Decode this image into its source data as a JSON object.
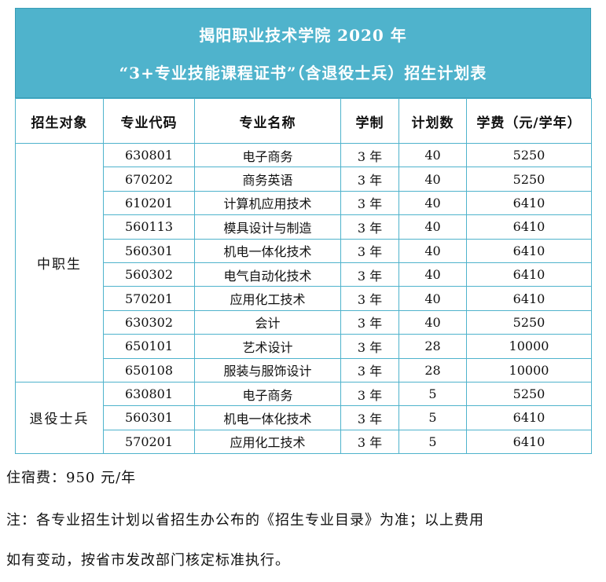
{
  "header": {
    "title_line1": "揭阳职业技术学院 2020 年",
    "title_line2": "“3+专业技能课程证书”（含退役士兵）招生计划表"
  },
  "table": {
    "columns": [
      "招生对象",
      "专业代码",
      "专业名称",
      "学制",
      "计划数",
      "学费（元/学年）"
    ],
    "groups": [
      {
        "name": "中职生",
        "rows": [
          {
            "code": "630801",
            "major": "电子商务",
            "years": "3 年",
            "plan": "40",
            "fee": "5250"
          },
          {
            "code": "670202",
            "major": "商务英语",
            "years": "3 年",
            "plan": "40",
            "fee": "5250"
          },
          {
            "code": "610201",
            "major": "计算机应用技术",
            "years": "3 年",
            "plan": "40",
            "fee": "6410"
          },
          {
            "code": "560113",
            "major": "模具设计与制造",
            "years": "3 年",
            "plan": "40",
            "fee": "6410"
          },
          {
            "code": "560301",
            "major": "机电一体化技术",
            "years": "3 年",
            "plan": "40",
            "fee": "6410"
          },
          {
            "code": "560302",
            "major": "电气自动化技术",
            "years": "3 年",
            "plan": "40",
            "fee": "6410"
          },
          {
            "code": "570201",
            "major": "应用化工技术",
            "years": "3 年",
            "plan": "40",
            "fee": "6410"
          },
          {
            "code": "630302",
            "major": "会计",
            "years": "3 年",
            "plan": "40",
            "fee": "5250"
          },
          {
            "code": "650101",
            "major": "艺术设计",
            "years": "3 年",
            "plan": "28",
            "fee": "10000"
          },
          {
            "code": "650108",
            "major": "服装与服饰设计",
            "years": "3 年",
            "plan": "28",
            "fee": "10000"
          }
        ]
      },
      {
        "name": "退役士兵",
        "rows": [
          {
            "code": "630801",
            "major": "电子商务",
            "years": "3 年",
            "plan": "5",
            "fee": "5250"
          },
          {
            "code": "560301",
            "major": "机电一体化技术",
            "years": "3 年",
            "plan": "5",
            "fee": "6410"
          },
          {
            "code": "570201",
            "major": "应用化工技术",
            "years": "3 年",
            "plan": "5",
            "fee": "6410"
          }
        ]
      }
    ]
  },
  "notes": {
    "dorm_fee": "住宿费：950 元/年",
    "remark_line1": "注：各专业招生计划以省招生办公布的《招生专业目录》为准；以上费用",
    "remark_line2": "如有变动，按省市发改部门核定标准执行。"
  },
  "colors": {
    "header_bg": "#4fb3cc",
    "border": "#4fb3cc"
  }
}
